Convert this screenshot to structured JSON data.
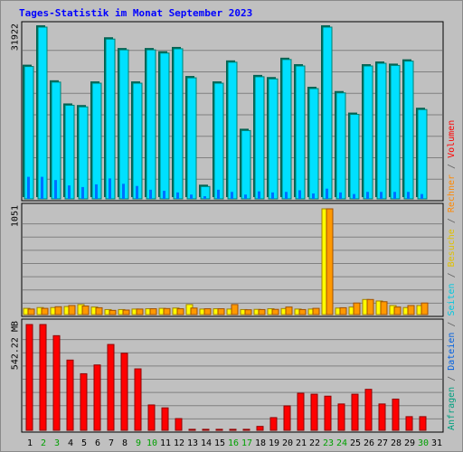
{
  "title": "Tages-Statistik im Monat September 2023",
  "chart_data": {
    "type": "bar",
    "days": [
      "1",
      "2",
      "3",
      "4",
      "5",
      "6",
      "7",
      "8",
      "9",
      "10",
      "11",
      "12",
      "13",
      "14",
      "15",
      "16",
      "17",
      "18",
      "19",
      "20",
      "21",
      "22",
      "23",
      "24",
      "25",
      "26",
      "27",
      "28",
      "29",
      "30",
      "31"
    ],
    "weekend_days": [
      "2",
      "3",
      "9",
      "10",
      "16",
      "17",
      "23",
      "24",
      "30"
    ],
    "panels": [
      {
        "name": "top",
        "ymax_label": "31922",
        "ymax": 31922,
        "series": [
          {
            "name": "Anfragen",
            "color": "#00e0ff",
            "edge": "#008070",
            "values": [
              24600,
              31922,
              21700,
              17400,
              17100,
              21500,
              29700,
              27700,
              21500,
              27700,
              27100,
              27900,
              22500,
              2300,
              21500,
              25400,
              12700,
              22700,
              22300,
              25900,
              24700,
              20500,
              31922,
              19700,
              15700,
              24700,
              25200,
              24800,
              25600,
              16600,
              null
            ]
          },
          {
            "name": "Dateien",
            "color": "#0070ff",
            "edge": "#0040a0",
            "values": [
              4100,
              4100,
              3500,
              2500,
              2200,
              2700,
              3800,
              2800,
              2400,
              1700,
              1500,
              1200,
              800,
              500,
              1700,
              1300,
              800,
              1400,
              1200,
              1300,
              1600,
              1000,
              1900,
              1200,
              900,
              1300,
              1300,
              1300,
              1300,
              900,
              null
            ]
          },
          {
            "name": "Seiten",
            "color": "#00e0ff",
            "values": []
          }
        ]
      },
      {
        "name": "middle",
        "ymax_label": "1051",
        "ymax": 1051,
        "series": [
          {
            "name": "Besuche",
            "color": "#ffff00",
            "edge": "#a08000",
            "values": [
              62,
              70,
              70,
              80,
              100,
              75,
              50,
              50,
              55,
              58,
              62,
              65,
              100,
              55,
              58,
              55,
              50,
              52,
              58,
              60,
              55,
              55,
              1051,
              65,
              75,
              150,
              135,
              90,
              70,
              90,
              null
            ]
          },
          {
            "name": "Rechner",
            "color": "#ff9900",
            "edge": "#a05000",
            "values": [
              55,
              62,
              78,
              90,
              85,
              68,
              42,
              45,
              55,
              58,
              60,
              58,
              65,
              58,
              58,
              100,
              48,
              50,
              52,
              75,
              50,
              62,
              1051,
              68,
              115,
              150,
              128,
              75,
              90,
              115,
              null
            ]
          }
        ]
      },
      {
        "name": "bottom",
        "ymax_label": "542.22 MB",
        "ymax": 542.22,
        "series": [
          {
            "name": "Volumen",
            "color": "#ff0000",
            "edge": "#900000",
            "values": [
              542.22,
              542.22,
              485,
              360,
              290,
              335,
              440,
              395,
              315,
              130,
              115,
              60,
              5,
              5,
              5,
              5,
              5,
              20,
              65,
              125,
              190,
              185,
              175,
              135,
              185,
              210,
              135,
              160,
              70,
              70,
              null
            ]
          }
        ]
      }
    ],
    "legend": [
      "Anfragen",
      "Dateien",
      "Seiten",
      "Besuche",
      "Rechner",
      "Volumen"
    ],
    "legend_separator": "/",
    "legend_colors": {
      "Anfragen": "#00a080",
      "Dateien": "#0060e0",
      "Seiten": "#00c8e0",
      "Besuche": "#e0c000",
      "Rechner": "#ff8800",
      "Volumen": "#ff0000",
      "separator": "#606060"
    },
    "grid": true,
    "day_label_colors": {
      "weekday": "#000000",
      "weekend": "#00a000"
    }
  }
}
